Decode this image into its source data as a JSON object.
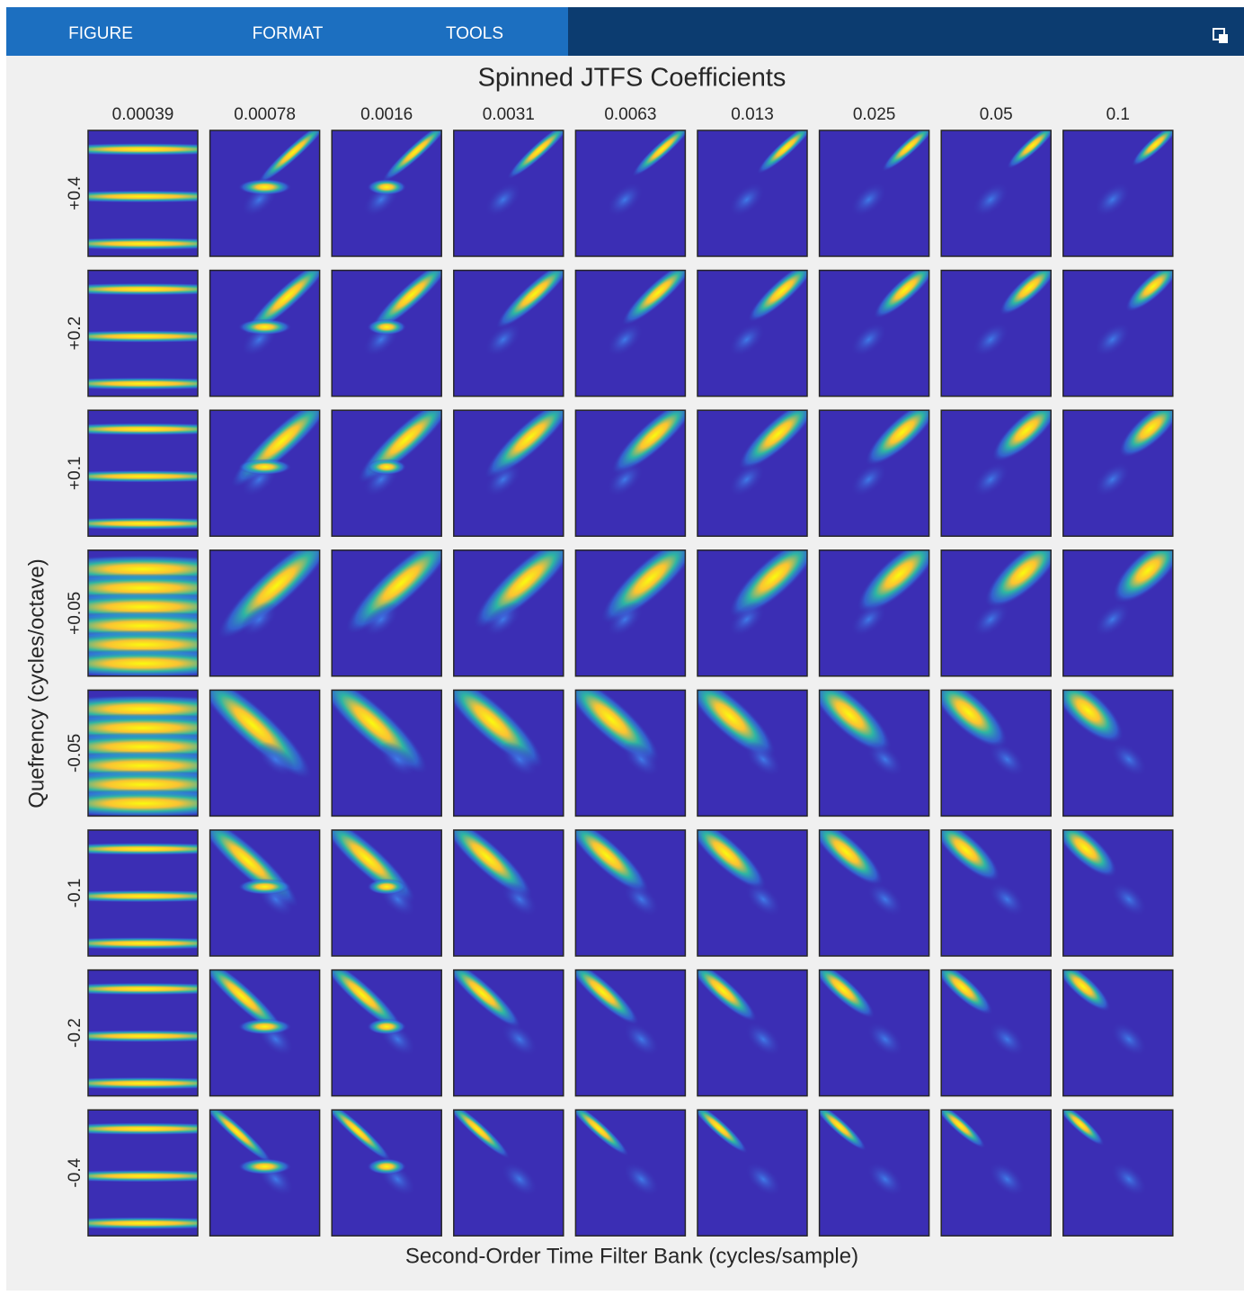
{
  "toolbar": {
    "tabs": [
      "FIGURE",
      "FORMAT",
      "TOOLS"
    ]
  },
  "figure": {
    "title": "Spinned JTFS Coefficients",
    "column_labels": [
      "0.00039",
      "0.00078",
      "0.0016",
      "0.0031",
      "0.0063",
      "0.013",
      "0.025",
      "0.05",
      "0.1"
    ],
    "row_labels": [
      "+0.4",
      "+0.2",
      "+0.1",
      "+0.05",
      "-0.05",
      "-0.1",
      "-0.2",
      "-0.4"
    ],
    "ylabel": "Quefrency (cycles/octave)",
    "xlabel": "Second-Order Time Filter Bank (cycles/sample)"
  }
}
